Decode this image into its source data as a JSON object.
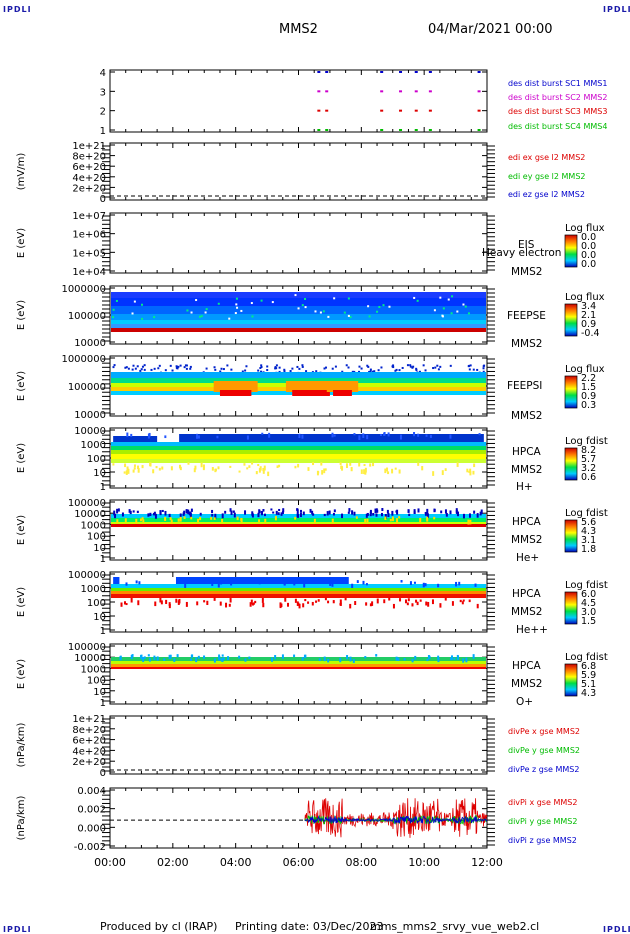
{
  "header": {
    "corner_label": "IPDLI",
    "spacecraft": "MMS2",
    "datetime": "04/Mar/2021 00:00"
  },
  "footer": {
    "produced_by": "Produced by cl (IRAP)",
    "printing_date": "Printing date: 03/Dec/2023",
    "filename": "mms_mms2_srvy_vue_web2.cl"
  },
  "x_axis": {
    "ticks": [
      "00:00",
      "02:00",
      "04:00",
      "06:00",
      "08:00",
      "10:00",
      "12:00"
    ],
    "range_hours": [
      0,
      12
    ]
  },
  "colors": {
    "red": "#dd0000",
    "green": "#00bb00",
    "blue": "#0000cc",
    "magenta": "#cc00cc",
    "ratio_red": "#ff0000",
    "ratio_green": "#00cc00",
    "ratio_blue": "#0000ff"
  },
  "chart_data": [
    {
      "type": "scatter",
      "id": "burst",
      "yticks": [
        "4",
        "3",
        "2",
        "1"
      ],
      "ylim": [
        0.5,
        4.5
      ],
      "series": [
        {
          "name": "des dist burst SC1 MMS1",
          "color": "#0000cc",
          "level": 4,
          "times_h": [
            6.6,
            6.85,
            8.6,
            9.2,
            9.7,
            10.15,
            11.7
          ]
        },
        {
          "name": "des dist burst SC2 MMS2",
          "color": "#cc00cc",
          "level": 3,
          "times_h": [
            6.6,
            6.85,
            8.6,
            9.2,
            9.7,
            10.15,
            11.7
          ]
        },
        {
          "name": "des dist burst SC3 MMS3",
          "color": "#dd0000",
          "level": 2,
          "times_h": [
            6.6,
            6.85,
            8.6,
            9.2,
            9.7,
            10.15,
            11.7
          ]
        },
        {
          "name": "des dist burst SC4 MMS4",
          "color": "#00bb00",
          "level": 1,
          "times_h": [
            6.6,
            6.85,
            8.6,
            9.2,
            9.7,
            10.15,
            11.7
          ]
        }
      ]
    },
    {
      "type": "line",
      "id": "edi",
      "ylabel": "(mV/m)",
      "yticks": [
        "1e+21",
        "8e+20",
        "6e+20",
        "4e+20",
        "2e+20",
        "0"
      ],
      "ylim": [
        0,
        1e+21
      ],
      "series": [
        {
          "name": "edi ex gse l2 MMS2",
          "color": "#dd0000"
        },
        {
          "name": "edi ey gse l2 MMS2",
          "color": "#00bb00"
        },
        {
          "name": "edi ez gse l2 MMS2",
          "color": "#0000cc"
        }
      ],
      "zero_line": true
    },
    {
      "type": "heatmap",
      "id": "eis",
      "ylabel": "E (eV)",
      "yticks": [
        "1e+07",
        "1e+06",
        "1e+05",
        "1e+04"
      ],
      "scale": "log",
      "labels": [
        "EIS",
        "Heavy electron to",
        "MMS2"
      ],
      "colorbar": {
        "title": "Log flux",
        "ticks": [
          "0.0",
          "0.0",
          "0.0",
          "0.0"
        ]
      }
    },
    {
      "type": "heatmap",
      "id": "feepse",
      "ylabel": "E (eV)",
      "yticks": [
        "1000000",
        "100000",
        "10000"
      ],
      "scale": "log",
      "labels": [
        "FEEPSE",
        "MMS2"
      ],
      "colorbar": {
        "title": "Log flux",
        "ticks": [
          "3.4",
          "2.1",
          "0.9",
          "-0.4"
        ]
      }
    },
    {
      "type": "heatmap",
      "id": "feepsi",
      "ylabel": "E (eV)",
      "yticks": [
        "1000000",
        "100000",
        "10000"
      ],
      "scale": "log",
      "labels": [
        "FEEPSI",
        "MMS2"
      ],
      "colorbar": {
        "title": "Log flux",
        "ticks": [
          "2.2",
          "1.5",
          "0.9",
          "0.3"
        ]
      }
    },
    {
      "type": "heatmap",
      "id": "hpca_h",
      "ylabel": "E (eV)",
      "yticks": [
        "10000",
        "1000",
        "100",
        "10",
        "1"
      ],
      "scale": "log",
      "labels": [
        "HPCA",
        "MMS2",
        "H+"
      ],
      "colorbar": {
        "title": "Log fdist",
        "ticks": [
          "8.2",
          "5.7",
          "3.2",
          "0.6"
        ]
      }
    },
    {
      "type": "heatmap",
      "id": "hpca_he",
      "ylabel": "E (eV)",
      "yticks": [
        "100000",
        "10000",
        "1000",
        "100",
        "10",
        "1"
      ],
      "scale": "log",
      "labels": [
        "HPCA",
        "MMS2",
        "He+"
      ],
      "colorbar": {
        "title": "Log fdist",
        "ticks": [
          "5.6",
          "4.3",
          "3.1",
          "1.8"
        ]
      }
    },
    {
      "type": "heatmap",
      "id": "hpca_hepp",
      "ylabel": "E (eV)",
      "yticks": [
        "100000",
        "1000",
        "100",
        "10",
        "1"
      ],
      "scale": "log",
      "labels": [
        "HPCA",
        "MMS2",
        "He++"
      ],
      "colorbar": {
        "title": "Log fdist",
        "ticks": [
          "6.0",
          "4.5",
          "3.0",
          "1.5"
        ]
      }
    },
    {
      "type": "heatmap",
      "id": "hpca_o",
      "ylabel": "E (eV)",
      "yticks": [
        "100000",
        "10000",
        "1000",
        "100",
        "10",
        "1"
      ],
      "scale": "log",
      "labels": [
        "HPCA",
        "MMS2",
        "O+"
      ],
      "colorbar": {
        "title": "Log fdist",
        "ticks": [
          "6.8",
          "5.9",
          "5.1",
          "4.3"
        ]
      }
    },
    {
      "type": "line",
      "id": "divpe",
      "ylabel": "(nPa/km)",
      "yticks": [
        "1e+21",
        "8e+20",
        "6e+20",
        "4e+20",
        "2e+20",
        "0"
      ],
      "ylim": [
        0,
        1e+21
      ],
      "series": [
        {
          "name": "divPe x gse MMS2",
          "color": "#dd0000"
        },
        {
          "name": "divPe y gse MMS2",
          "color": "#00bb00"
        },
        {
          "name": "divPe z gse MMS2",
          "color": "#0000cc"
        }
      ],
      "zero_line": true
    },
    {
      "type": "line",
      "id": "divpi",
      "ylabel": "(nPa/km)",
      "yticks": [
        "0.004",
        "0.002",
        "0.000",
        "-0.002"
      ],
      "ylim": [
        -0.0036,
        0.0042
      ],
      "data_start_h": 6.2,
      "series": [
        {
          "name": "divPi x gse MMS2",
          "color": "#dd0000"
        },
        {
          "name": "divPi y gse MMS2",
          "color": "#00bb00"
        },
        {
          "name": "divPi z gse MMS2",
          "color": "#0000cc"
        }
      ],
      "zero_line": true
    }
  ]
}
